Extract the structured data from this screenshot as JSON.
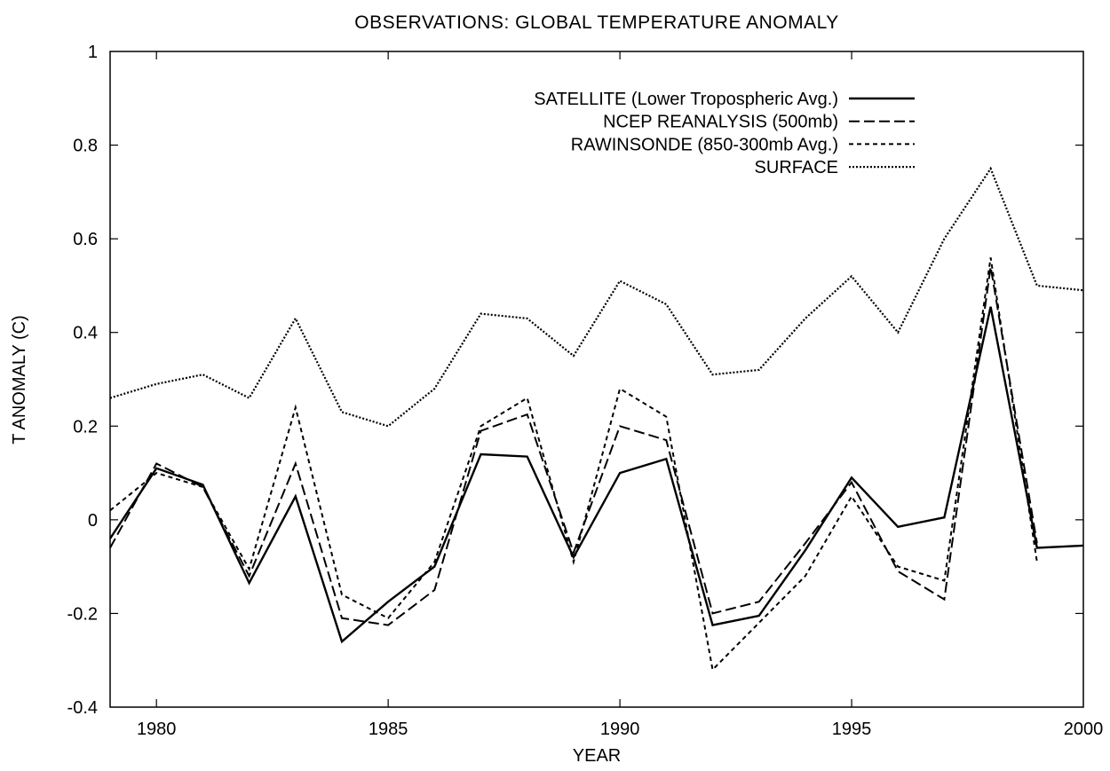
{
  "chart_data": {
    "type": "line",
    "title": "OBSERVATIONS: GLOBAL TEMPERATURE ANOMALY",
    "xlabel": "YEAR",
    "ylabel": "T ANOMALY (C)",
    "xlim": [
      1979,
      2000
    ],
    "ylim": [
      -0.4,
      1
    ],
    "xticks": [
      1980,
      1985,
      1990,
      1995,
      2000
    ],
    "yticks": [
      -0.4,
      -0.2,
      0,
      0.2,
      0.4,
      0.6,
      0.8,
      1
    ],
    "ytick_labels": [
      "-0.4",
      "-0.2",
      "0",
      "0.2",
      "0.4",
      "0.6",
      "0.8",
      "1"
    ],
    "grid": false,
    "legend_position": "top-right",
    "series": [
      {
        "name": "SATELLITE (Lower Tropospheric Avg.)",
        "style": "solid",
        "x": [
          1979,
          1980,
          1981,
          1982,
          1983,
          1984,
          1985,
          1986,
          1987,
          1988,
          1989,
          1990,
          1991,
          1992,
          1993,
          1994,
          1995,
          1996,
          1997,
          1998,
          1999,
          2000
        ],
        "values": [
          -0.04,
          0.11,
          0.075,
          -0.135,
          0.05,
          -0.26,
          -0.175,
          -0.1,
          0.14,
          0.135,
          -0.08,
          0.1,
          0.13,
          -0.225,
          -0.205,
          -0.065,
          0.09,
          -0.015,
          0.005,
          0.455,
          -0.06,
          -0.055
        ]
      },
      {
        "name": "NCEP REANALYSIS (500mb)",
        "style": "dashed",
        "x": [
          1979,
          1980,
          1981,
          1982,
          1983,
          1984,
          1985,
          1986,
          1987,
          1988,
          1989,
          1990,
          1991,
          1992,
          1993,
          1994,
          1995,
          1996,
          1997,
          1998,
          1999
        ],
        "values": [
          -0.06,
          0.12,
          0.07,
          -0.12,
          0.12,
          -0.21,
          -0.225,
          -0.15,
          0.19,
          0.225,
          -0.07,
          0.2,
          0.17,
          -0.2,
          -0.175,
          -0.05,
          0.08,
          -0.11,
          -0.17,
          0.54,
          -0.05
        ]
      },
      {
        "name": "RAWINSONDE (850-300mb Avg.)",
        "style": "short-dashed",
        "x": [
          1979,
          1980,
          1981,
          1982,
          1983,
          1984,
          1985,
          1986,
          1987,
          1988,
          1989,
          1990,
          1991,
          1992,
          1993,
          1994,
          1995,
          1996,
          1997,
          1998,
          1999
        ],
        "values": [
          0.02,
          0.1,
          0.07,
          -0.105,
          0.24,
          -0.16,
          -0.21,
          -0.09,
          0.2,
          0.26,
          -0.09,
          0.28,
          0.22,
          -0.32,
          -0.22,
          -0.12,
          0.05,
          -0.1,
          -0.13,
          0.56,
          -0.09
        ]
      },
      {
        "name": "SURFACE",
        "style": "dotted",
        "x": [
          1979,
          1980,
          1981,
          1982,
          1983,
          1984,
          1985,
          1986,
          1987,
          1988,
          1989,
          1990,
          1991,
          1992,
          1993,
          1994,
          1995,
          1996,
          1997,
          1998,
          1999,
          2000
        ],
        "values": [
          0.26,
          0.29,
          0.31,
          0.26,
          0.43,
          0.23,
          0.2,
          0.28,
          0.44,
          0.43,
          0.35,
          0.51,
          0.46,
          0.31,
          0.32,
          0.43,
          0.52,
          0.4,
          0.6,
          0.75,
          0.5,
          0.49
        ]
      }
    ]
  }
}
